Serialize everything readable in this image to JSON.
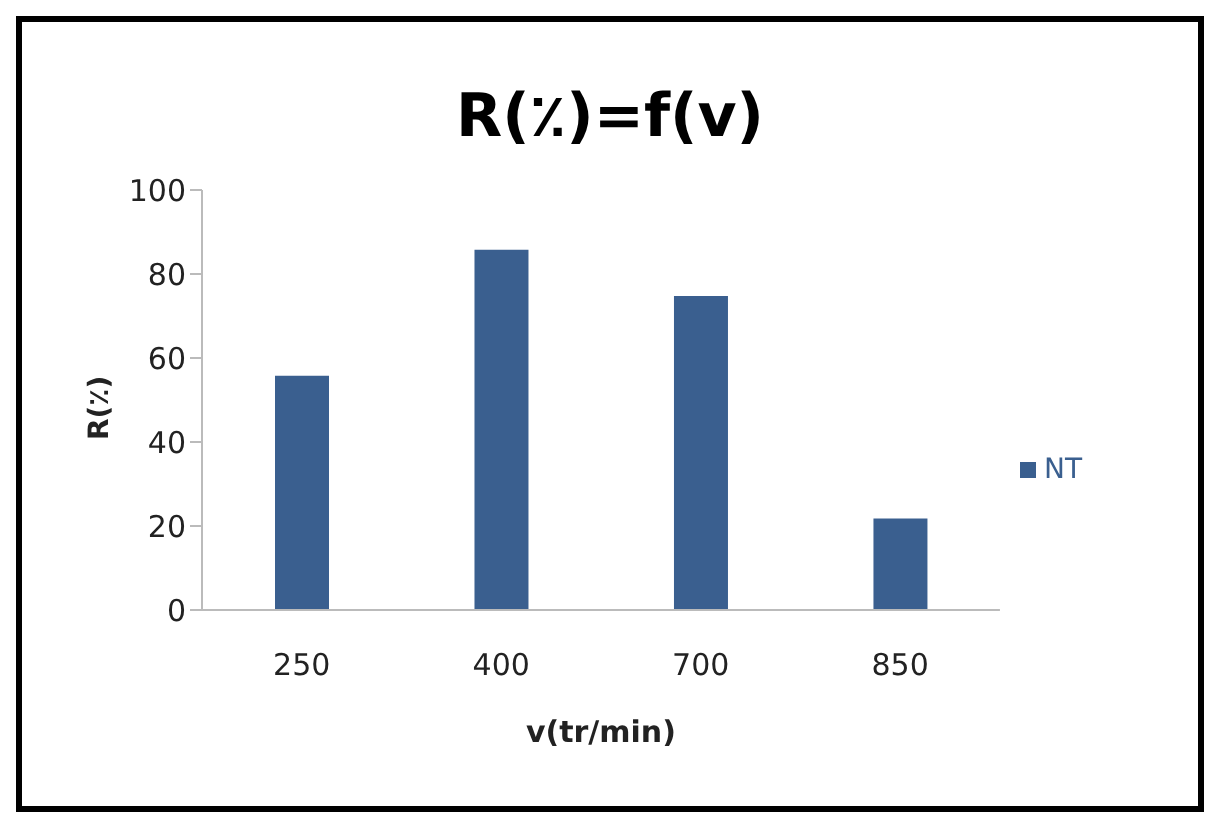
{
  "chart_data": {
    "type": "bar",
    "title": "R(٪)=f(v)",
    "xlabel": "v(tr/min)",
    "ylabel": "R(٪)",
    "categories": [
      "250",
      "400",
      "700",
      "850"
    ],
    "series": [
      {
        "name": "NT",
        "color": "#3a5f8f",
        "values": [
          56,
          86,
          75,
          22
        ]
      }
    ],
    "ylim": [
      0,
      100
    ],
    "yticks": [
      0,
      20,
      40,
      60,
      80,
      100
    ],
    "grid": false,
    "legend": "right"
  }
}
